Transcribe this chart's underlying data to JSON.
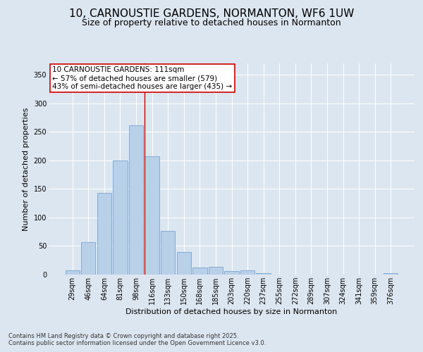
{
  "title": "10, CARNOUSTIE GARDENS, NORMANTON, WF6 1UW",
  "subtitle": "Size of property relative to detached houses in Normanton",
  "xlabel": "Distribution of detached houses by size in Normanton",
  "ylabel": "Number of detached properties",
  "bin_labels": [
    "29sqm",
    "46sqm",
    "64sqm",
    "81sqm",
    "98sqm",
    "116sqm",
    "133sqm",
    "150sqm",
    "168sqm",
    "185sqm",
    "203sqm",
    "220sqm",
    "237sqm",
    "255sqm",
    "272sqm",
    "289sqm",
    "307sqm",
    "324sqm",
    "341sqm",
    "359sqm",
    "376sqm"
  ],
  "bar_heights": [
    8,
    57,
    143,
    200,
    262,
    207,
    76,
    40,
    12,
    13,
    6,
    7,
    3,
    0,
    0,
    0,
    0,
    0,
    0,
    0,
    2
  ],
  "bar_color": "#b8d0e8",
  "bar_edge_color": "#6699cc",
  "vline_x_index": 5,
  "vline_color": "#cc0000",
  "annotation_text": "10 CARNOUSTIE GARDENS: 111sqm\n← 57% of detached houses are smaller (579)\n43% of semi-detached houses are larger (435) →",
  "annotation_box_color": "#ffffff",
  "annotation_box_edge": "#cc0000",
  "ylim": [
    0,
    370
  ],
  "yticks": [
    0,
    50,
    100,
    150,
    200,
    250,
    300,
    350
  ],
  "background_color": "#dce6f0",
  "plot_background": "#dce6f0",
  "footer_text": "Contains HM Land Registry data © Crown copyright and database right 2025.\nContains public sector information licensed under the Open Government Licence v3.0.",
  "title_fontsize": 11,
  "subtitle_fontsize": 9,
  "label_fontsize": 8,
  "tick_fontsize": 7,
  "annotation_fontsize": 7.5,
  "footer_fontsize": 6
}
